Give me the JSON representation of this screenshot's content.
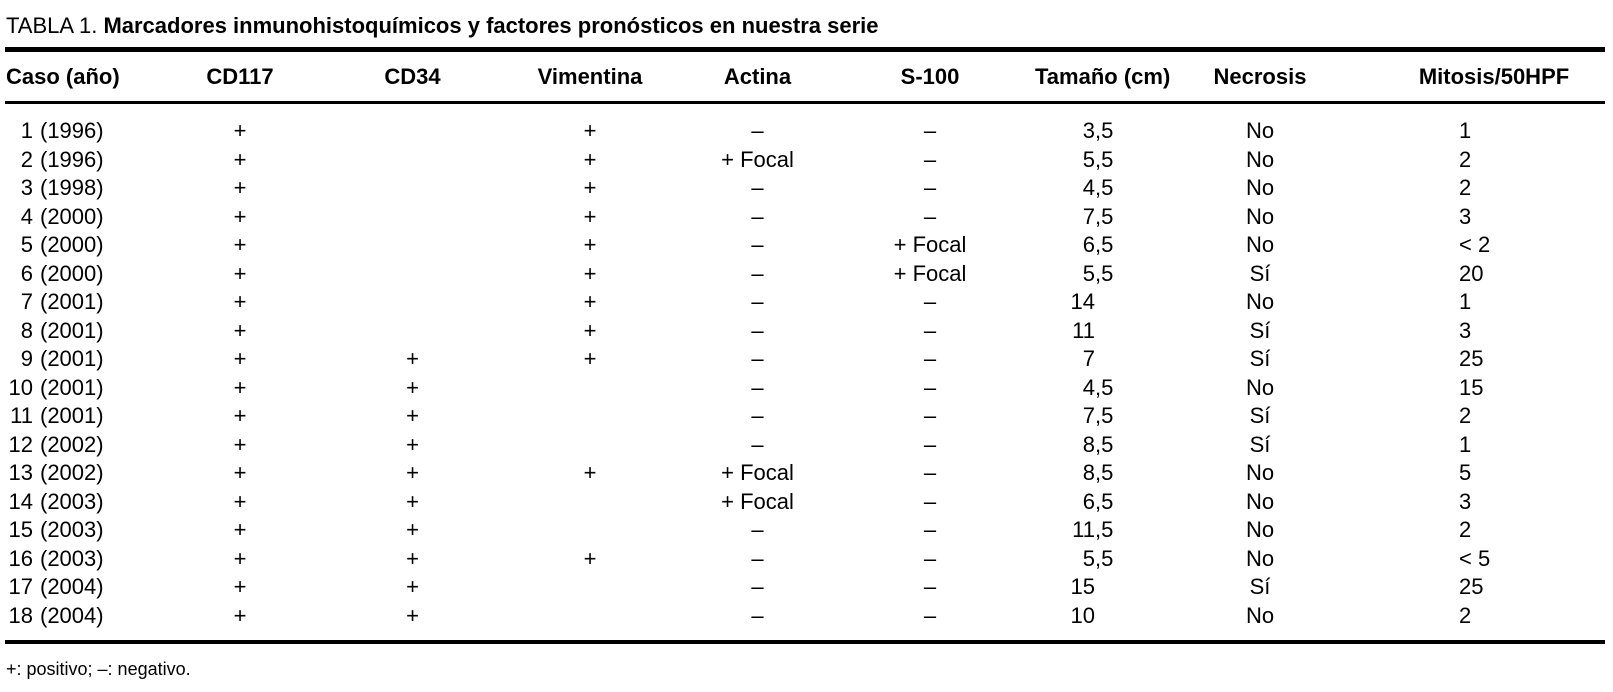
{
  "colors": {
    "text": "#000000",
    "background": "#ffffff",
    "rule": "#000000"
  },
  "table": {
    "label": "TABLA 1.",
    "title": "Marcadores inmunohistoquímicos y factores pronósticos en nuestra serie",
    "columns": [
      "Caso (año)",
      "CD117",
      "CD34",
      "Vimentina",
      "Actina",
      "S-100",
      "Tamaño (cm)",
      "Necrosis",
      "Mitosis/50HPF"
    ],
    "rows": [
      {
        "caso": "1",
        "year": "(1996)",
        "cd117": "+",
        "cd34": "",
        "vimentina": "+",
        "actina": "–",
        "s100": "–",
        "tamano": "3,5",
        "necrosis": "No",
        "mitosis": "1"
      },
      {
        "caso": "2",
        "year": "(1996)",
        "cd117": "+",
        "cd34": "",
        "vimentina": "+",
        "actina": "+ Focal",
        "s100": "–",
        "tamano": "5,5",
        "necrosis": "No",
        "mitosis": "2"
      },
      {
        "caso": "3",
        "year": "(1998)",
        "cd117": "+",
        "cd34": "",
        "vimentina": "+",
        "actina": "–",
        "s100": "–",
        "tamano": "4,5",
        "necrosis": "No",
        "mitosis": "2"
      },
      {
        "caso": "4",
        "year": "(2000)",
        "cd117": "+",
        "cd34": "",
        "vimentina": "+",
        "actina": "–",
        "s100": "–",
        "tamano": "7,5",
        "necrosis": "No",
        "mitosis": "3"
      },
      {
        "caso": "5",
        "year": "(2000)",
        "cd117": "+",
        "cd34": "",
        "vimentina": "+",
        "actina": "–",
        "s100": "+ Focal",
        "tamano": "6,5",
        "necrosis": "No",
        "mitosis": "< 2"
      },
      {
        "caso": "6",
        "year": "(2000)",
        "cd117": "+",
        "cd34": "",
        "vimentina": "+",
        "actina": "–",
        "s100": "+ Focal",
        "tamano": "5,5",
        "necrosis": "Sí",
        "mitosis": "20"
      },
      {
        "caso": "7",
        "year": "(2001)",
        "cd117": "+",
        "cd34": "",
        "vimentina": "+",
        "actina": "–",
        "s100": "–",
        "tamano": "14",
        "necrosis": "No",
        "mitosis": "1"
      },
      {
        "caso": "8",
        "year": "(2001)",
        "cd117": "+",
        "cd34": "",
        "vimentina": "+",
        "actina": "–",
        "s100": "–",
        "tamano": "11",
        "necrosis": "Sí",
        "mitosis": "3"
      },
      {
        "caso": "9",
        "year": "(2001)",
        "cd117": "+",
        "cd34": "+",
        "vimentina": "+",
        "actina": "–",
        "s100": "–",
        "tamano": "7",
        "necrosis": "Sí",
        "mitosis": "25"
      },
      {
        "caso": "10",
        "year": "(2001)",
        "cd117": "+",
        "cd34": "+",
        "vimentina": "",
        "actina": "–",
        "s100": "–",
        "tamano": "4,5",
        "necrosis": "No",
        "mitosis": "15"
      },
      {
        "caso": "11",
        "year": "(2001)",
        "cd117": "+",
        "cd34": "+",
        "vimentina": "",
        "actina": "–",
        "s100": "–",
        "tamano": "7,5",
        "necrosis": "Sí",
        "mitosis": "2"
      },
      {
        "caso": "12",
        "year": "(2002)",
        "cd117": "+",
        "cd34": "+",
        "vimentina": "",
        "actina": "–",
        "s100": "–",
        "tamano": "8,5",
        "necrosis": "Sí",
        "mitosis": "1"
      },
      {
        "caso": "13",
        "year": "(2002)",
        "cd117": "+",
        "cd34": "+",
        "vimentina": "+",
        "actina": "+ Focal",
        "s100": "–",
        "tamano": "8,5",
        "necrosis": "No",
        "mitosis": "5"
      },
      {
        "caso": "14",
        "year": "(2003)",
        "cd117": "+",
        "cd34": "+",
        "vimentina": "",
        "actina": "+ Focal",
        "s100": "–",
        "tamano": "6,5",
        "necrosis": "No",
        "mitosis": "3"
      },
      {
        "caso": "15",
        "year": "(2003)",
        "cd117": "+",
        "cd34": "+",
        "vimentina": "",
        "actina": "–",
        "s100": "–",
        "tamano": "11,5",
        "necrosis": "No",
        "mitosis": "2"
      },
      {
        "caso": "16",
        "year": "(2003)",
        "cd117": "+",
        "cd34": "+",
        "vimentina": "+",
        "actina": "–",
        "s100": "–",
        "tamano": "5,5",
        "necrosis": "No",
        "mitosis": "< 5"
      },
      {
        "caso": "17",
        "year": "(2004)",
        "cd117": "+",
        "cd34": "+",
        "vimentina": "",
        "actina": "–",
        "s100": "–",
        "tamano": "15",
        "necrosis": "Sí",
        "mitosis": "25"
      },
      {
        "caso": "18",
        "year": "(2004)",
        "cd117": "+",
        "cd34": "+",
        "vimentina": "",
        "actina": "–",
        "s100": "–",
        "tamano": "10",
        "necrosis": "No",
        "mitosis": "2"
      }
    ],
    "footnote": "+: positivo; –: negativo."
  }
}
